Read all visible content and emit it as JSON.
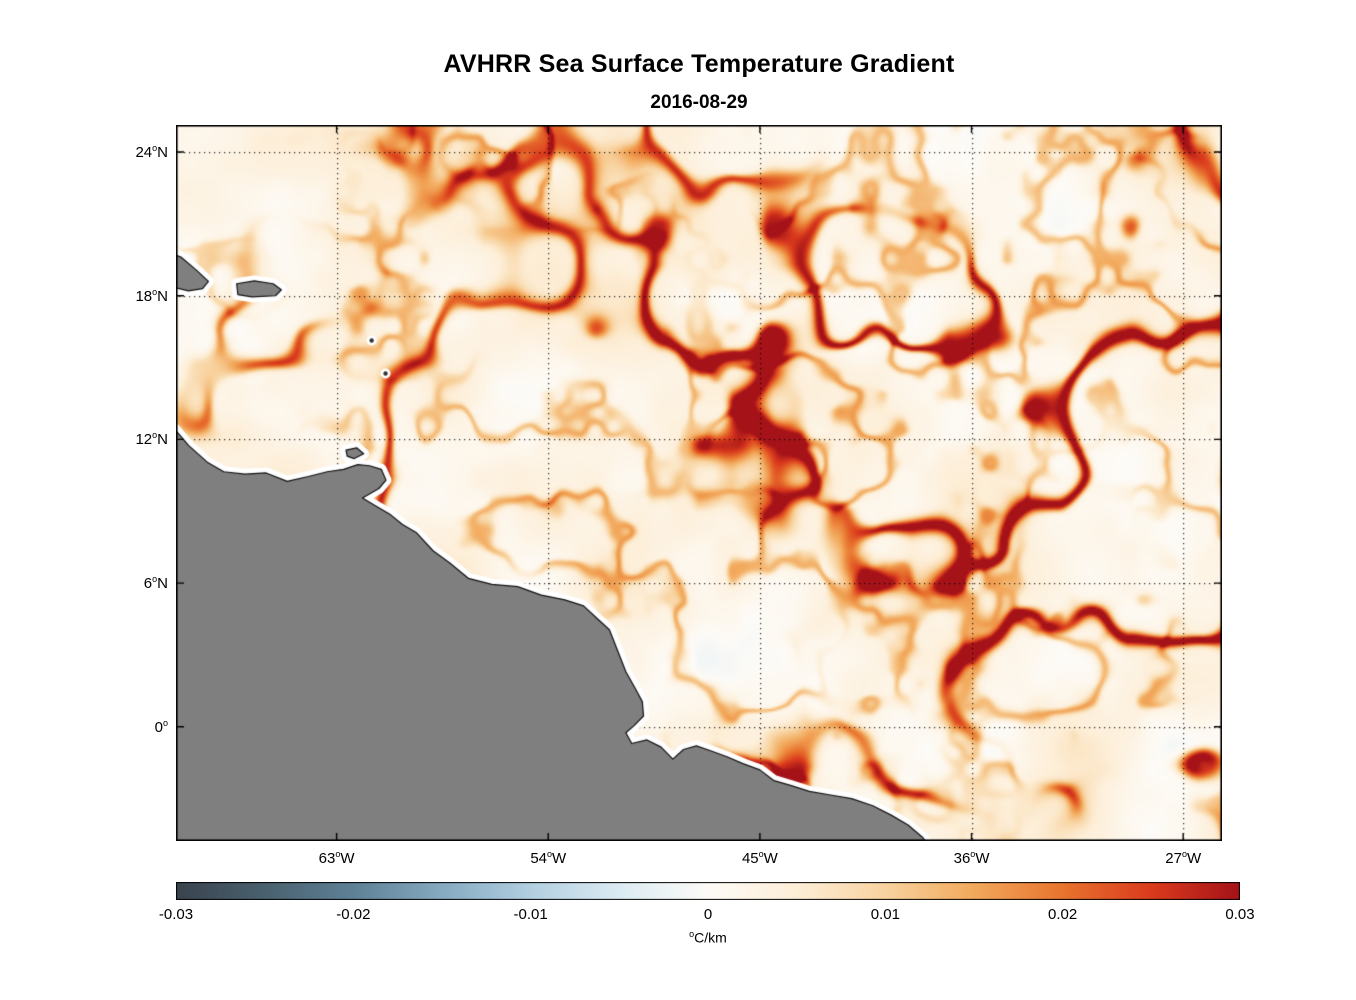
{
  "chart_data": {
    "type": "heatmap",
    "title": "AVHRR Sea Surface Temperature Gradient",
    "subtitle": "2016-08-29",
    "x_axis": {
      "lim": [
        -69.83,
        -25.35
      ],
      "ticks": [
        {
          "v": -63,
          "label": "63",
          "sup": "o",
          "suffix": "W"
        },
        {
          "v": -54,
          "label": "54",
          "sup": "o",
          "suffix": "W"
        },
        {
          "v": -45,
          "label": "45",
          "sup": "o",
          "suffix": "W"
        },
        {
          "v": -36,
          "label": "36",
          "sup": "o",
          "suffix": "W"
        },
        {
          "v": -27,
          "label": "27",
          "sup": "o",
          "suffix": "W"
        }
      ]
    },
    "y_axis": {
      "lim": [
        -4.77,
        25.13
      ],
      "ticks": [
        {
          "v": 24,
          "label": "24",
          "sup": "o",
          "suffix": "N"
        },
        {
          "v": 18,
          "label": "18",
          "sup": "o",
          "suffix": "N"
        },
        {
          "v": 12,
          "label": "12",
          "sup": "o",
          "suffix": "N"
        },
        {
          "v": 6,
          "label": "6",
          "sup": "o",
          "suffix": "N"
        },
        {
          "v": 0,
          "label": "0",
          "sup": "o",
          "suffix": ""
        }
      ]
    },
    "grid": {
      "style": "dotted",
      "color": "#000000"
    },
    "colorbar": {
      "min": -0.03,
      "max": 0.03,
      "ticks": [
        {
          "v": -0.03,
          "label": "-0.03"
        },
        {
          "v": -0.02,
          "label": "-0.02"
        },
        {
          "v": -0.01,
          "label": "-0.01"
        },
        {
          "v": 0,
          "label": "0"
        },
        {
          "v": 0.01,
          "label": "0.01"
        },
        {
          "v": 0.02,
          "label": "0.02"
        },
        {
          "v": 0.03,
          "label": "0.03"
        }
      ],
      "unit_sup": "o",
      "unit": "C/km",
      "stops": [
        [
          -0.03,
          "#3a434e"
        ],
        [
          -0.025,
          "#4a616f"
        ],
        [
          -0.02,
          "#5f8196"
        ],
        [
          -0.015,
          "#86aac1"
        ],
        [
          -0.01,
          "#b2cfe1"
        ],
        [
          -0.005,
          "#dcebf3"
        ],
        [
          0,
          "#fdfbf7"
        ],
        [
          0.005,
          "#fdeed7"
        ],
        [
          0.01,
          "#f8d3a0"
        ],
        [
          0.015,
          "#f2a95c"
        ],
        [
          0.02,
          "#e8742f"
        ],
        [
          0.025,
          "#da3b1d"
        ],
        [
          0.03,
          "#a51319"
        ]
      ]
    },
    "map": {
      "land_color": "#7f7f7f",
      "coast_outline_color": "#111111",
      "coast_gap_color": "#ffffff",
      "coastline_mainland": [
        [
          -70.6,
          12.8
        ],
        [
          -69.9,
          12.45
        ],
        [
          -69.3,
          11.75
        ],
        [
          -68.5,
          11.05
        ],
        [
          -67.8,
          10.65
        ],
        [
          -66.9,
          10.55
        ],
        [
          -66.0,
          10.6
        ],
        [
          -65.1,
          10.25
        ],
        [
          -64.2,
          10.45
        ],
        [
          -63.4,
          10.65
        ],
        [
          -62.7,
          10.75
        ],
        [
          -62.1,
          10.95
        ],
        [
          -61.6,
          10.9
        ],
        [
          -61.1,
          10.75
        ],
        [
          -60.9,
          10.3
        ],
        [
          -61.2,
          9.95
        ],
        [
          -61.9,
          9.55
        ],
        [
          -61.3,
          9.2
        ],
        [
          -60.7,
          8.85
        ],
        [
          -60.2,
          8.45
        ],
        [
          -59.6,
          8.1
        ],
        [
          -58.9,
          7.35
        ],
        [
          -58.2,
          6.85
        ],
        [
          -57.4,
          6.2
        ],
        [
          -56.4,
          5.95
        ],
        [
          -55.3,
          5.85
        ],
        [
          -54.3,
          5.5
        ],
        [
          -53.3,
          5.3
        ],
        [
          -52.5,
          5.05
        ],
        [
          -51.9,
          4.5
        ],
        [
          -51.4,
          4.05
        ],
        [
          -51.1,
          3.3
        ],
        [
          -50.7,
          2.3
        ],
        [
          -50.3,
          1.6
        ],
        [
          -50.0,
          1.05
        ],
        [
          -49.95,
          0.45
        ],
        [
          -50.35,
          0.05
        ],
        [
          -50.7,
          -0.25
        ],
        [
          -50.45,
          -0.7
        ],
        [
          -49.8,
          -0.55
        ],
        [
          -49.2,
          -0.85
        ],
        [
          -48.7,
          -1.35
        ],
        [
          -48.25,
          -0.95
        ],
        [
          -47.7,
          -0.8
        ],
        [
          -47.1,
          -1.0
        ],
        [
          -46.4,
          -1.25
        ],
        [
          -45.7,
          -1.55
        ],
        [
          -45.0,
          -1.8
        ],
        [
          -44.4,
          -2.25
        ],
        [
          -43.7,
          -2.45
        ],
        [
          -42.9,
          -2.7
        ],
        [
          -42.0,
          -2.85
        ],
        [
          -41.1,
          -3.0
        ],
        [
          -40.2,
          -3.3
        ],
        [
          -39.4,
          -3.7
        ],
        [
          -38.7,
          -4.1
        ],
        [
          -38.1,
          -4.6
        ],
        [
          -37.6,
          -5.2
        ],
        [
          -37.0,
          -6.0
        ],
        [
          -71.0,
          -6.0
        ]
      ],
      "islands": [
        [
          [
            -70.3,
            19.9
          ],
          [
            -69.6,
            19.6
          ],
          [
            -69.0,
            19.1
          ],
          [
            -68.45,
            18.6
          ],
          [
            -68.7,
            18.3
          ],
          [
            -69.3,
            18.2
          ],
          [
            -69.9,
            18.35
          ],
          [
            -70.3,
            18.5
          ]
        ],
        [
          [
            -67.25,
            18.5
          ],
          [
            -66.5,
            18.62
          ],
          [
            -65.7,
            18.5
          ],
          [
            -65.35,
            18.25
          ],
          [
            -65.6,
            18.0
          ],
          [
            -66.6,
            17.95
          ],
          [
            -67.2,
            18.05
          ]
        ],
        [
          [
            -62.6,
            11.55
          ],
          [
            -62.15,
            11.65
          ],
          [
            -61.85,
            11.4
          ],
          [
            -62.25,
            11.2
          ],
          [
            -62.55,
            11.3
          ]
        ]
      ],
      "island_dots": [
        [
          -61.51,
          16.13
        ],
        [
          -60.92,
          14.75
        ]
      ]
    }
  }
}
